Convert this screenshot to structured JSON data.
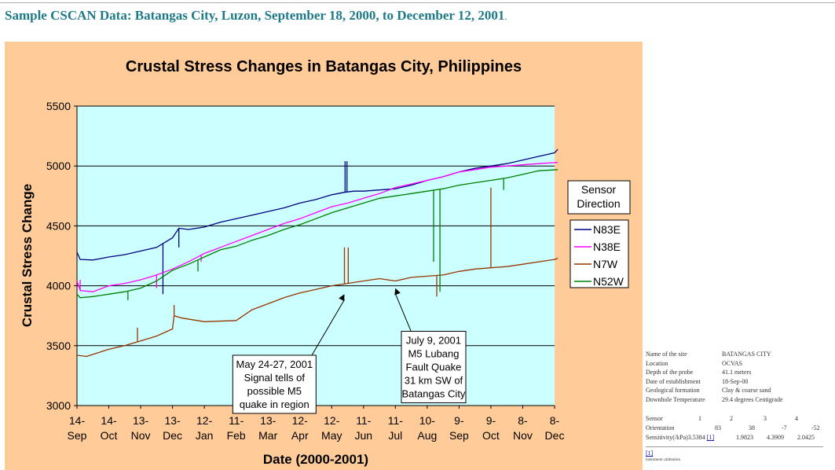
{
  "page": {
    "heading": "Sample CSCAN Data: Batangas City, Luzon, September 18, 2000, to December 12, 2001",
    "heading_suffix": "."
  },
  "site_info": [
    {
      "label": "Name of the site",
      "value": "BATANGAS CITY"
    },
    {
      "label": "Location",
      "value": "OCVAS"
    },
    {
      "label": "Depth of the probe",
      "value": "41.1 meters"
    },
    {
      "label": "Date of establishment",
      "value": "18-Sep-00"
    },
    {
      "label": "Geological formation",
      "value": "Clay & coarse sand"
    },
    {
      "label": "Downhole Temperature",
      "value": "29.4 degrees Centigrade"
    }
  ],
  "sensor_table": {
    "sensor_label": "Sensor",
    "sensor_numbers": [
      "1",
      "2",
      "3",
      "4"
    ],
    "orientation_label": "Orientation",
    "orientations": [
      "83",
      "38",
      "-7",
      "-52"
    ],
    "sensitivity_label": "Sensitivity(/kPa)",
    "sensitivities": [
      "3.5384",
      "1.9823",
      "4.3909",
      "2.0425"
    ],
    "footnote_ref": "[1]"
  },
  "footnote": {
    "ref": "[1]",
    "text": "instrument calibration"
  },
  "colors": {
    "heading": "#1d7a86",
    "chart_area_bg": "#ffcc99",
    "plot_bg": "#ccffff",
    "N83E": "#000080",
    "N38E": "#ff00ff",
    "N7W": "#993300",
    "N52W": "#008000"
  },
  "chart_data": {
    "type": "line",
    "title": "Crustal Stress Changes in Batangas City, Philippines",
    "xlabel": "Date (2000-2001)",
    "ylabel": "Crustal Stress Change",
    "ylim": [
      3000,
      5500
    ],
    "yticks": [
      3000,
      3500,
      4000,
      4500,
      5000,
      5500
    ],
    "grid": "horizontal",
    "x_ticks": [
      {
        "top": "14-",
        "bottom": "Sep"
      },
      {
        "top": "14-",
        "bottom": "Oct"
      },
      {
        "top": "13-",
        "bottom": "Nov"
      },
      {
        "top": "13-",
        "bottom": "Dec"
      },
      {
        "top": "12-",
        "bottom": "Jan"
      },
      {
        "top": "11-",
        "bottom": "Feb"
      },
      {
        "top": "13-",
        "bottom": "Mar"
      },
      {
        "top": "12-",
        "bottom": "Apr"
      },
      {
        "top": "12-",
        "bottom": "May"
      },
      {
        "top": "11-",
        "bottom": "Jun"
      },
      {
        "top": "11-",
        "bottom": "Jul"
      },
      {
        "top": "10-",
        "bottom": "Aug"
      },
      {
        "top": "9-",
        "bottom": "Sep"
      },
      {
        "top": "9-",
        "bottom": "Oct"
      },
      {
        "top": "8-",
        "bottom": "Nov"
      },
      {
        "top": "8-",
        "bottom": "Dec"
      }
    ],
    "legend": {
      "title": [
        "Sensor",
        "Direction"
      ],
      "placement": "right"
    },
    "series": [
      {
        "name": "N83E",
        "points": [
          [
            0,
            4280
          ],
          [
            0.1,
            4220
          ],
          [
            0.5,
            4215
          ],
          [
            1,
            4240
          ],
          [
            1.5,
            4260
          ],
          [
            2,
            4290
          ],
          [
            2.5,
            4320
          ],
          [
            3,
            4400
          ],
          [
            3.2,
            4480
          ],
          [
            3.5,
            4470
          ],
          [
            4,
            4490
          ],
          [
            4.5,
            4530
          ],
          [
            5,
            4560
          ],
          [
            5.5,
            4590
          ],
          [
            6,
            4620
          ],
          [
            6.5,
            4650
          ],
          [
            7,
            4690
          ],
          [
            7.5,
            4720
          ],
          [
            8,
            4760
          ],
          [
            8.4,
            4780
          ],
          [
            8.7,
            4790
          ],
          [
            9,
            4790
          ],
          [
            9.5,
            4800
          ],
          [
            10,
            4810
          ],
          [
            10.5,
            4840
          ],
          [
            11,
            4880
          ],
          [
            11.5,
            4910
          ],
          [
            12,
            4950
          ],
          [
            12.5,
            4980
          ],
          [
            13,
            5000
          ],
          [
            13.5,
            5020
          ],
          [
            14,
            5050
          ],
          [
            14.5,
            5080
          ],
          [
            15,
            5110
          ],
          [
            15.1,
            5140
          ]
        ],
        "spikes": [
          [
            2.7,
            3930
          ],
          [
            3.2,
            4320
          ],
          [
            8.42,
            5040
          ],
          [
            8.48,
            5040
          ]
        ]
      },
      {
        "name": "N38E",
        "points": [
          [
            0,
            4040
          ],
          [
            0.1,
            3960
          ],
          [
            0.5,
            3950
          ],
          [
            1,
            4000
          ],
          [
            1.5,
            4020
          ],
          [
            2,
            4050
          ],
          [
            2.5,
            4090
          ],
          [
            3,
            4140
          ],
          [
            3.5,
            4200
          ],
          [
            4,
            4270
          ],
          [
            4.5,
            4320
          ],
          [
            5,
            4370
          ],
          [
            5.5,
            4420
          ],
          [
            6,
            4470
          ],
          [
            6.5,
            4520
          ],
          [
            7,
            4560
          ],
          [
            7.5,
            4610
          ],
          [
            8,
            4660
          ],
          [
            8.5,
            4690
          ],
          [
            9,
            4730
          ],
          [
            9.5,
            4770
          ],
          [
            10,
            4820
          ],
          [
            10.5,
            4850
          ],
          [
            11,
            4880
          ],
          [
            11.5,
            4910
          ],
          [
            12,
            4950
          ],
          [
            12.5,
            4970
          ],
          [
            13,
            4990
          ],
          [
            13.5,
            5000
          ],
          [
            14,
            5010
          ],
          [
            14.5,
            5020
          ],
          [
            15.1,
            5030
          ]
        ],
        "spikes": [
          [
            0.1,
            4050
          ],
          [
            2.5,
            3980
          ],
          [
            3.9,
            4200
          ],
          [
            8.45,
            4690
          ]
        ]
      },
      {
        "name": "N7W",
        "points": [
          [
            0,
            3420
          ],
          [
            0.3,
            3410
          ],
          [
            1,
            3470
          ],
          [
            1.5,
            3500
          ],
          [
            2,
            3540
          ],
          [
            2.5,
            3580
          ],
          [
            3,
            3640
          ],
          [
            3.05,
            3750
          ],
          [
            3.3,
            3730
          ],
          [
            4,
            3700
          ],
          [
            5,
            3710
          ],
          [
            5.5,
            3800
          ],
          [
            6,
            3850
          ],
          [
            6.5,
            3900
          ],
          [
            7,
            3940
          ],
          [
            7.5,
            3970
          ],
          [
            8,
            4000
          ],
          [
            8.5,
            4020
          ],
          [
            9,
            4040
          ],
          [
            9.5,
            4060
          ],
          [
            10,
            4040
          ],
          [
            10.5,
            4070
          ],
          [
            11,
            4080
          ],
          [
            11.5,
            4090
          ],
          [
            12,
            4120
          ],
          [
            12.5,
            4140
          ],
          [
            13,
            4150
          ],
          [
            13.5,
            4160
          ],
          [
            14,
            4180
          ],
          [
            14.5,
            4200
          ],
          [
            15,
            4220
          ],
          [
            15.1,
            4230
          ]
        ],
        "spikes": [
          [
            1.9,
            3650
          ],
          [
            3.05,
            3840
          ],
          [
            8.4,
            4320
          ],
          [
            8.52,
            4320
          ],
          [
            11.3,
            3910
          ],
          [
            13.0,
            4820
          ]
        ]
      },
      {
        "name": "N52W",
        "points": [
          [
            0,
            3930
          ],
          [
            0.1,
            3900
          ],
          [
            0.5,
            3910
          ],
          [
            1,
            3930
          ],
          [
            1.5,
            3950
          ],
          [
            2,
            3980
          ],
          [
            2.5,
            4040
          ],
          [
            3,
            4130
          ],
          [
            3.5,
            4180
          ],
          [
            4,
            4240
          ],
          [
            4.5,
            4300
          ],
          [
            5,
            4330
          ],
          [
            5.5,
            4380
          ],
          [
            6,
            4420
          ],
          [
            6.5,
            4470
          ],
          [
            7,
            4510
          ],
          [
            7.5,
            4560
          ],
          [
            8,
            4610
          ],
          [
            8.5,
            4650
          ],
          [
            9,
            4690
          ],
          [
            9.5,
            4730
          ],
          [
            10,
            4750
          ],
          [
            10.5,
            4770
          ],
          [
            11,
            4790
          ],
          [
            11.5,
            4810
          ],
          [
            12,
            4840
          ],
          [
            12.5,
            4860
          ],
          [
            13,
            4880
          ],
          [
            13.5,
            4900
          ],
          [
            14,
            4930
          ],
          [
            14.5,
            4960
          ],
          [
            15.1,
            4970
          ]
        ],
        "spikes": [
          [
            1.6,
            3880
          ],
          [
            3.8,
            4120
          ],
          [
            11.2,
            4200
          ],
          [
            11.4,
            3950
          ],
          [
            13.4,
            4800
          ]
        ]
      }
    ],
    "annotations": [
      {
        "lines": [
          "May 24-27, 2001",
          "Signal tells of",
          "possible M5",
          "quake in region"
        ],
        "box_x": 6.2,
        "box_y": 3420,
        "arrow_to": [
          8.4,
          3930
        ]
      },
      {
        "lines": [
          "July 9, 2001",
          "M5 Lubang",
          "Fault Quake",
          "31 km SW of",
          "Batangas City"
        ],
        "box_x": 11.2,
        "box_y": 3620,
        "arrow_to": [
          10.0,
          3980
        ]
      }
    ]
  }
}
